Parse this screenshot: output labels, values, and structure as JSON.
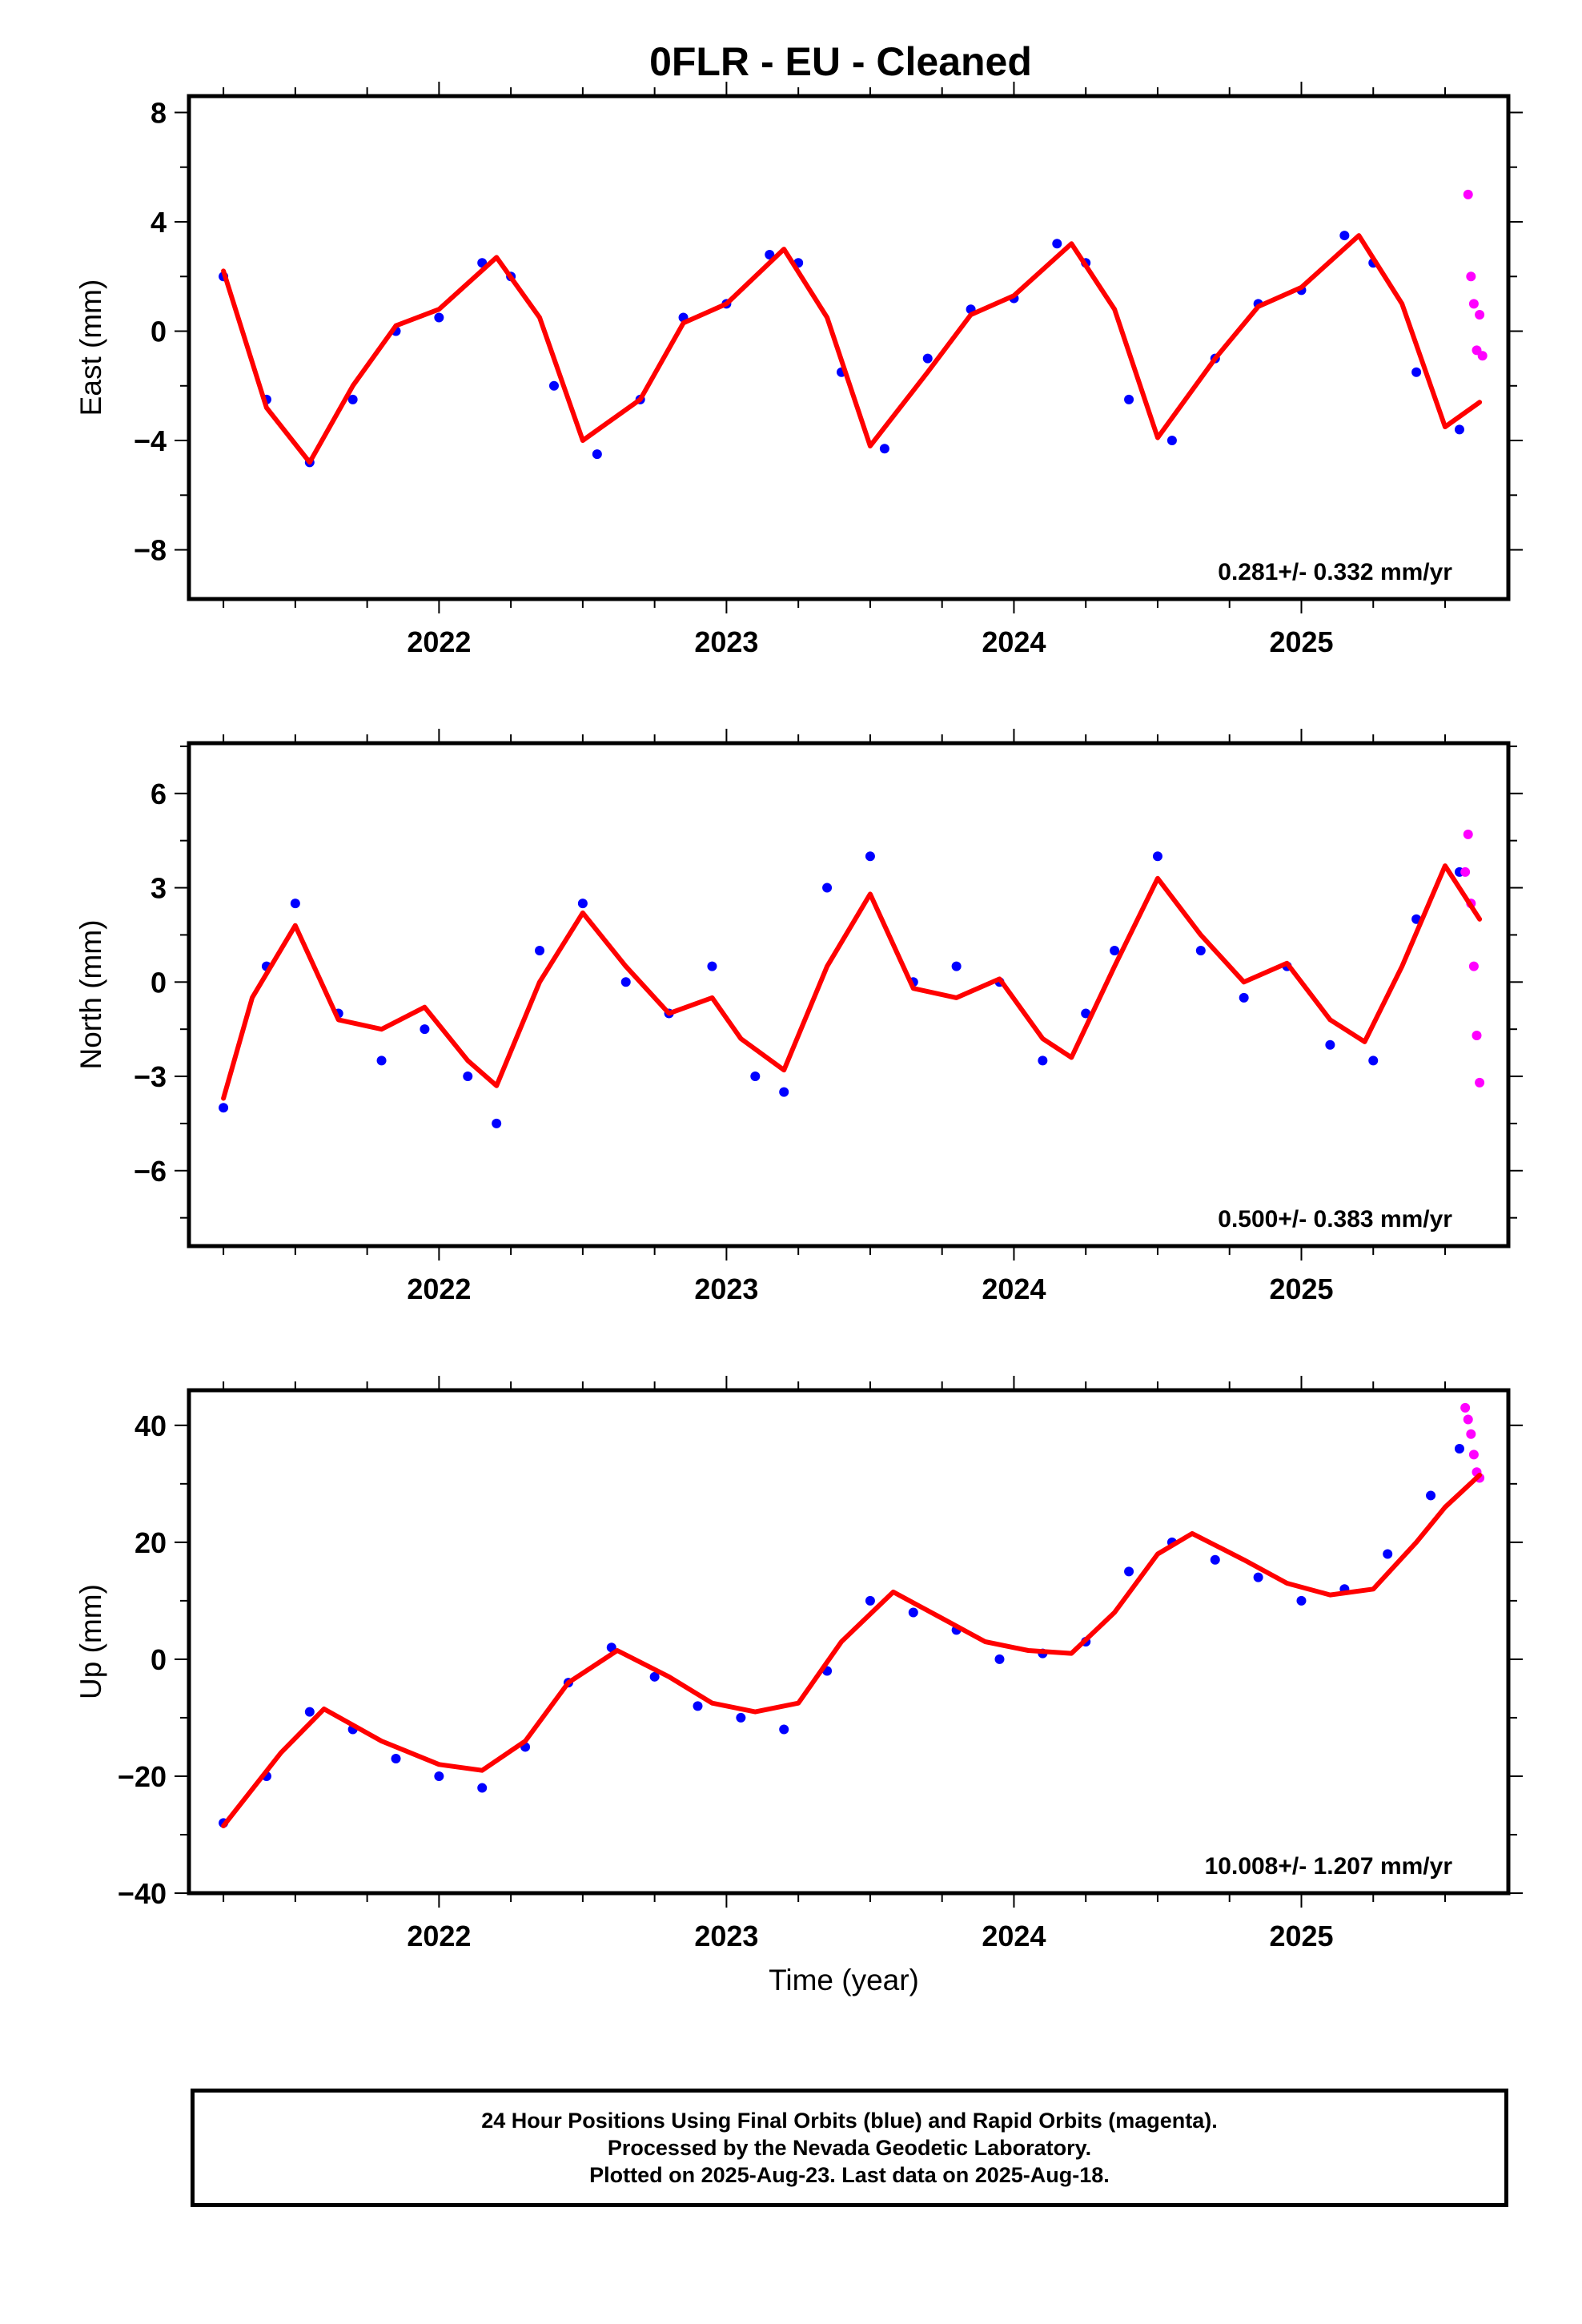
{
  "title": "0FLR  - EU - Cleaned",
  "xlabel": "Time (year)",
  "caption": {
    "line1": "24 Hour Positions Using Final Orbits (blue) and Rapid Orbits (magenta).",
    "line2": "Processed by the Nevada Geodetic Laboratory.",
    "line3": "Plotted on 2025-Aug-23. Last data on 2025-Aug-18."
  },
  "colors": {
    "final_orbits": "#0000ff",
    "rapid_orbits": "#ff00ff",
    "model_fit": "#ff0000",
    "axes": "#000000"
  },
  "chart_data": [
    {
      "type": "scatter",
      "ylabel": "East (mm)",
      "xlim": [
        2021.13,
        2025.72
      ],
      "ylim": [
        -9.8,
        8.6
      ],
      "x_ticks": [
        2022,
        2023,
        2024,
        2025
      ],
      "y_ticks": [
        -8,
        -4,
        0,
        4,
        8
      ],
      "rate_text": "0.281+/- 0.332 mm/yr",
      "series": [
        {
          "name": "Final Orbits",
          "color": "#0000ff",
          "x": [
            2021.25,
            2021.4,
            2021.55,
            2021.7,
            2021.85,
            2022.0,
            2022.15,
            2022.25,
            2022.4,
            2022.55,
            2022.7,
            2022.85,
            2023.0,
            2023.15,
            2023.25,
            2023.4,
            2023.55,
            2023.7,
            2023.85,
            2024.0,
            2024.15,
            2024.25,
            2024.4,
            2024.55,
            2024.7,
            2024.85,
            2025.0,
            2025.15,
            2025.25,
            2025.4,
            2025.55
          ],
          "y": [
            2.0,
            -2.5,
            -4.8,
            -2.5,
            0.0,
            0.5,
            2.5,
            2.0,
            -2.0,
            -4.5,
            -2.5,
            0.5,
            1.0,
            2.8,
            2.5,
            -1.5,
            -4.3,
            -1.0,
            0.8,
            1.2,
            3.2,
            2.5,
            -2.5,
            -4.0,
            -1.0,
            1.0,
            1.5,
            3.5,
            2.5,
            -1.5,
            -3.6
          ]
        },
        {
          "name": "Rapid Orbits",
          "color": "#ff00ff",
          "x": [
            2025.58,
            2025.59,
            2025.6,
            2025.61,
            2025.62,
            2025.63
          ],
          "y": [
            5.0,
            2.0,
            1.0,
            -0.7,
            0.6,
            -0.9
          ]
        },
        {
          "name": "Model Fit",
          "color": "#ff0000",
          "x": [
            2021.25,
            2021.4,
            2021.55,
            2021.7,
            2021.85,
            2022.0,
            2022.2,
            2022.35,
            2022.5,
            2022.7,
            2022.85,
            2023.0,
            2023.2,
            2023.35,
            2023.5,
            2023.7,
            2023.85,
            2024.0,
            2024.2,
            2024.35,
            2024.5,
            2024.7,
            2024.85,
            2025.0,
            2025.2,
            2025.35,
            2025.5,
            2025.62
          ],
          "y": [
            2.2,
            -2.8,
            -4.8,
            -2.0,
            0.2,
            0.8,
            2.7,
            0.5,
            -4.0,
            -2.5,
            0.3,
            1.0,
            3.0,
            0.5,
            -4.2,
            -1.5,
            0.6,
            1.3,
            3.2,
            0.8,
            -3.9,
            -1.0,
            0.9,
            1.6,
            3.5,
            1.0,
            -3.5,
            -2.6
          ]
        }
      ]
    },
    {
      "type": "scatter",
      "ylabel": "North (mm)",
      "xlim": [
        2021.13,
        2025.72
      ],
      "ylim": [
        -8.4,
        7.6
      ],
      "x_ticks": [
        2022,
        2023,
        2024,
        2025
      ],
      "y_ticks": [
        -6,
        -3,
        0,
        3,
        6
      ],
      "rate_text": "0.500+/- 0.383 mm/yr",
      "series": [
        {
          "name": "Final Orbits",
          "color": "#0000ff",
          "x": [
            2021.25,
            2021.4,
            2021.5,
            2021.65,
            2021.8,
            2021.95,
            2022.1,
            2022.2,
            2022.35,
            2022.5,
            2022.65,
            2022.8,
            2022.95,
            2023.1,
            2023.2,
            2023.35,
            2023.5,
            2023.65,
            2023.8,
            2023.95,
            2024.1,
            2024.25,
            2024.35,
            2024.5,
            2024.65,
            2024.8,
            2024.95,
            2025.1,
            2025.25,
            2025.4,
            2025.55
          ],
          "y": [
            -4.0,
            0.5,
            2.5,
            -1.0,
            -2.5,
            -1.5,
            -3.0,
            -4.5,
            1.0,
            2.5,
            0.0,
            -1.0,
            0.5,
            -3.0,
            -3.5,
            3.0,
            4.0,
            0.0,
            0.5,
            0.0,
            -2.5,
            -1.0,
            1.0,
            4.0,
            1.0,
            -0.5,
            0.5,
            -2.0,
            -2.5,
            2.0,
            3.5
          ]
        },
        {
          "name": "Rapid Orbits",
          "color": "#ff00ff",
          "x": [
            2025.57,
            2025.58,
            2025.59,
            2025.6,
            2025.61,
            2025.62
          ],
          "y": [
            3.5,
            4.7,
            2.5,
            0.5,
            -1.7,
            -3.2
          ]
        },
        {
          "name": "Model Fit",
          "color": "#ff0000",
          "x": [
            2021.25,
            2021.35,
            2021.5,
            2021.65,
            2021.8,
            2021.95,
            2022.1,
            2022.2,
            2022.35,
            2022.5,
            2022.65,
            2022.8,
            2022.95,
            2023.05,
            2023.2,
            2023.35,
            2023.5,
            2023.65,
            2023.8,
            2023.95,
            2024.1,
            2024.2,
            2024.35,
            2024.5,
            2024.65,
            2024.8,
            2024.95,
            2025.1,
            2025.22,
            2025.35,
            2025.5,
            2025.62
          ],
          "y": [
            -3.7,
            -0.5,
            1.8,
            -1.2,
            -1.5,
            -0.8,
            -2.5,
            -3.3,
            0.0,
            2.2,
            0.5,
            -1.0,
            -0.5,
            -1.8,
            -2.8,
            0.5,
            2.8,
            -0.2,
            -0.5,
            0.1,
            -1.8,
            -2.4,
            0.5,
            3.3,
            1.5,
            0.0,
            0.6,
            -1.2,
            -1.9,
            0.5,
            3.7,
            2.0
          ]
        }
      ]
    },
    {
      "type": "scatter",
      "ylabel": "Up (mm)",
      "xlim": [
        2021.13,
        2025.72
      ],
      "ylim": [
        -40,
        46
      ],
      "x_ticks": [
        2022,
        2023,
        2024,
        2025
      ],
      "y_ticks": [
        -40,
        -20,
        0,
        20,
        40
      ],
      "rate_text": "10.008+/- 1.207 mm/yr",
      "series": [
        {
          "name": "Final Orbits",
          "color": "#0000ff",
          "x": [
            2021.25,
            2021.4,
            2021.55,
            2021.7,
            2021.85,
            2022.0,
            2022.15,
            2022.3,
            2022.45,
            2022.6,
            2022.75,
            2022.9,
            2023.05,
            2023.2,
            2023.35,
            2023.5,
            2023.65,
            2023.8,
            2023.95,
            2024.1,
            2024.25,
            2024.4,
            2024.55,
            2024.7,
            2024.85,
            2025.0,
            2025.15,
            2025.3,
            2025.45,
            2025.55
          ],
          "y": [
            -28.0,
            -20.0,
            -9.0,
            -12.0,
            -17.0,
            -20.0,
            -22.0,
            -15.0,
            -4.0,
            2.0,
            -3.0,
            -8.0,
            -10.0,
            -12.0,
            -2.0,
            10.0,
            8.0,
            5.0,
            0.0,
            1.0,
            3.0,
            15.0,
            20.0,
            17.0,
            14.0,
            10.0,
            12.0,
            18.0,
            28.0,
            36.0
          ]
        },
        {
          "name": "Rapid Orbits",
          "color": "#ff00ff",
          "x": [
            2025.57,
            2025.58,
            2025.59,
            2025.6,
            2025.61,
            2025.62
          ],
          "y": [
            43.0,
            41.0,
            38.5,
            35.0,
            32.0,
            31.0
          ]
        },
        {
          "name": "Model Fit",
          "color": "#ff0000",
          "x": [
            2021.25,
            2021.45,
            2021.6,
            2021.8,
            2022.0,
            2022.15,
            2022.3,
            2022.45,
            2022.62,
            2022.8,
            2022.95,
            2023.1,
            2023.25,
            2023.4,
            2023.58,
            2023.75,
            2023.9,
            2024.05,
            2024.2,
            2024.35,
            2024.5,
            2024.62,
            2024.8,
            2024.95,
            2025.1,
            2025.25,
            2025.4,
            2025.5,
            2025.62
          ],
          "y": [
            -28.5,
            -16.0,
            -8.5,
            -14.0,
            -18.0,
            -19.0,
            -14.0,
            -4.0,
            1.5,
            -3.0,
            -7.5,
            -9.0,
            -7.5,
            3.0,
            11.5,
            7.0,
            3.0,
            1.5,
            1.0,
            8.0,
            18.0,
            21.5,
            17.0,
            13.0,
            11.0,
            12.0,
            20.0,
            26.0,
            31.5
          ]
        }
      ]
    }
  ]
}
